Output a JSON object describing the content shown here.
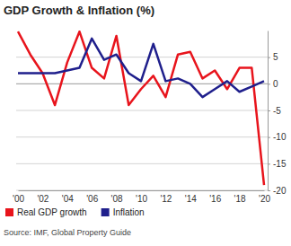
{
  "chart_data": {
    "type": "line",
    "title": "GDP Growth & Inflation (%)",
    "source": "Source: IMF, Global Property Guide",
    "categories": [
      "'00",
      null,
      "'02",
      null,
      "'04",
      null,
      "'06",
      null,
      "'08",
      null,
      "'10",
      null,
      "'12",
      null,
      "'14",
      null,
      "'16",
      null,
      "'18",
      null,
      "'20"
    ],
    "series": [
      {
        "name": "Real GDP growth",
        "color": "#e8141c",
        "values": [
          9.8,
          5.5,
          2.0,
          -4.0,
          4.0,
          9.8,
          3.0,
          1.0,
          9.0,
          -4.0,
          -1.0,
          1.5,
          -2.5,
          5.5,
          6.0,
          1.0,
          2.5,
          -1.0,
          3.0,
          3.0,
          -19.0
        ]
      },
      {
        "name": "Inflation",
        "color": "#1f1f8c",
        "values": [
          2.0,
          2.0,
          2.0,
          2.0,
          2.5,
          3.0,
          8.5,
          4.5,
          5.5,
          2.0,
          0.5,
          7.5,
          0.5,
          1.0,
          0.0,
          -2.5,
          -1.0,
          0.5,
          -1.5,
          -0.5,
          0.5
        ]
      }
    ],
    "ylim": [
      -20,
      10
    ],
    "yticks": [
      -20,
      -15,
      -10,
      -5,
      0,
      5
    ],
    "grid": true,
    "legend": "bottom-left"
  }
}
